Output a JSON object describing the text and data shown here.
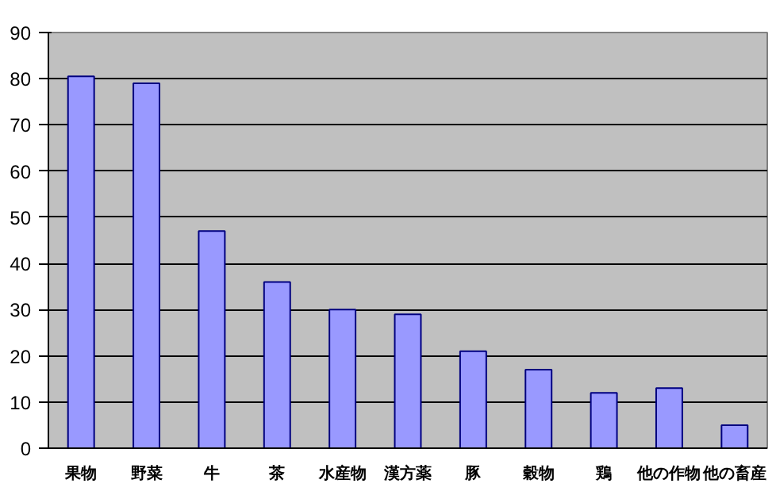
{
  "chart_data": {
    "type": "bar",
    "categories": [
      "果物",
      "野菜",
      "牛",
      "茶",
      "水産物",
      "漢方薬",
      "豚",
      "穀物",
      "鶏",
      "他の作物",
      "他の畜産"
    ],
    "values": [
      80.5,
      79,
      47,
      36,
      30,
      29,
      21,
      17,
      12,
      13,
      5
    ],
    "color": "#9999ff",
    "ylim": [
      0,
      90
    ],
    "yticks": [
      0,
      10,
      20,
      30,
      40,
      50,
      60,
      70,
      80,
      90
    ],
    "grid": "y"
  }
}
